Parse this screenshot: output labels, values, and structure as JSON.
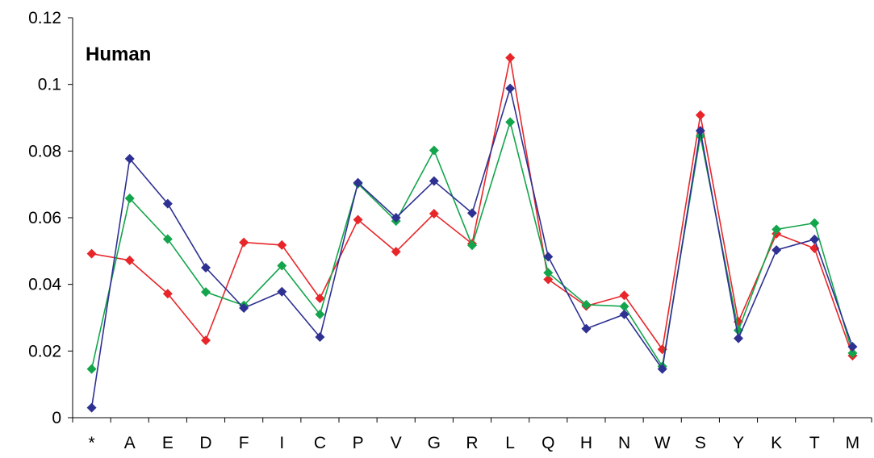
{
  "chart_data": {
    "type": "line",
    "title": "",
    "annotation": "Human",
    "xlabel": "",
    "ylabel": "",
    "categories": [
      "*",
      "A",
      "E",
      "D",
      "F",
      "I",
      "C",
      "P",
      "V",
      "G",
      "R",
      "L",
      "Q",
      "H",
      "N",
      "W",
      "S",
      "Y",
      "K",
      "T",
      "M"
    ],
    "ylim": [
      0,
      0.12
    ],
    "yticks": [
      "0",
      "0.02",
      "0.04",
      "0.06",
      "0.08",
      "0.1",
      "0.12"
    ],
    "grid": false,
    "legend": "none",
    "series": [
      {
        "color": "#e8262a",
        "values": [
          0.0492,
          0.0472,
          0.0372,
          0.0232,
          0.0526,
          0.0518,
          0.0358,
          0.0594,
          0.0498,
          0.0612,
          0.0522,
          0.108,
          0.0415,
          0.0335,
          0.0367,
          0.0205,
          0.0908,
          0.0288,
          0.0552,
          0.0508,
          0.0186
        ]
      },
      {
        "color": "#13a54b",
        "values": [
          0.0146,
          0.0658,
          0.0536,
          0.0377,
          0.0337,
          0.0456,
          0.031,
          0.0702,
          0.059,
          0.0802,
          0.0517,
          0.0887,
          0.0435,
          0.0339,
          0.0334,
          0.0154,
          0.0845,
          0.0262,
          0.0565,
          0.0584,
          0.0194
        ]
      },
      {
        "color": "#2e3192",
        "values": [
          0.003,
          0.0777,
          0.0642,
          0.045,
          0.0329,
          0.0378,
          0.0242,
          0.0705,
          0.06,
          0.071,
          0.0614,
          0.0988,
          0.0483,
          0.0267,
          0.031,
          0.0146,
          0.0861,
          0.0238,
          0.0503,
          0.0535,
          0.0213
        ]
      }
    ]
  }
}
